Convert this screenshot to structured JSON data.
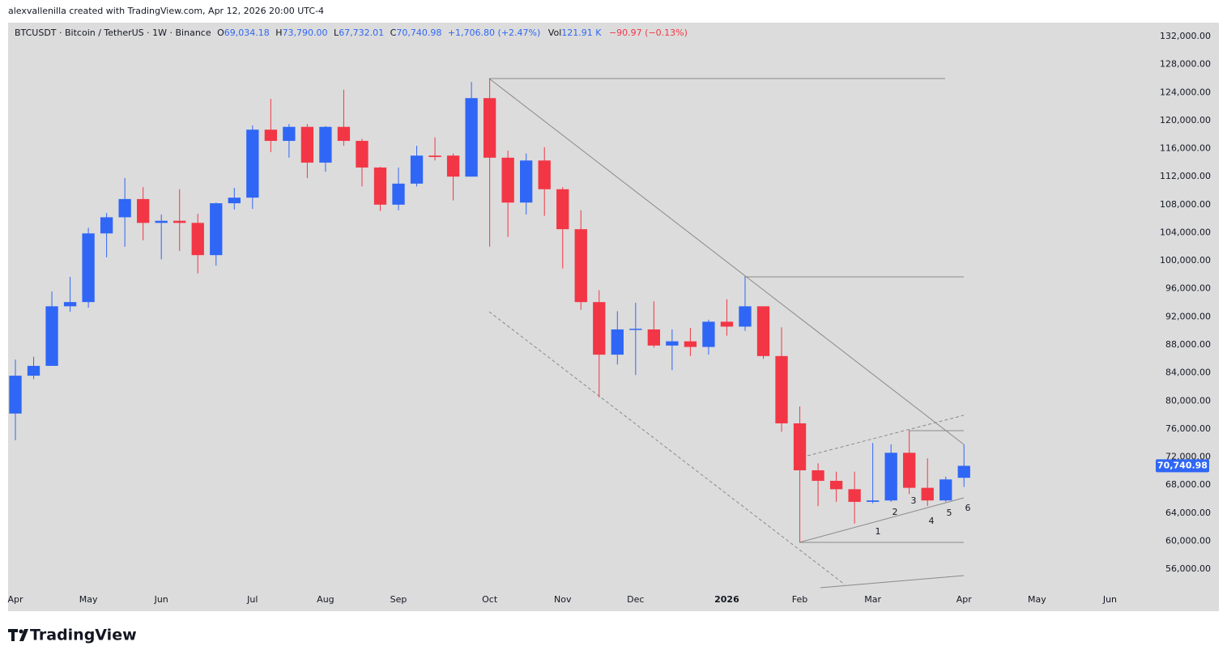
{
  "watermark": "alexvallenilla created with TradingView.com, Apr 12, 2026 20:00 UTC-4",
  "brand": "TradingView",
  "header": {
    "symbol": "BTCUSDT · Bitcoin / TetherUS · 1W · Binance",
    "ohlc": [
      {
        "key": "O",
        "value": "69,034.18"
      },
      {
        "key": "H",
        "value": "73,790.00"
      },
      {
        "key": "L",
        "value": "67,732.01"
      },
      {
        "key": "C",
        "value": "70,740.98"
      }
    ],
    "change": "+1,706.80 (+2.47%)",
    "volume_key": "Vol",
    "volume": "121.91 K",
    "volume_change": "−90.97 (−0.13%)"
  },
  "annotations": [
    "1",
    "2",
    "3",
    "4",
    "5",
    "6"
  ],
  "chart_data": {
    "type": "candlestick",
    "up_color": "#2f66f5",
    "down_color": "#f23645",
    "open": [
      78200,
      83600,
      85000,
      93500,
      94100,
      103900,
      106200,
      108800,
      105400,
      105700,
      105400,
      100800,
      108200,
      109000,
      118700,
      117100,
      119100,
      114000,
      119100,
      117100,
      113300,
      108000,
      111000,
      115000,
      115000,
      112000,
      123200,
      114700,
      108300,
      114300,
      110200,
      104500,
      94100,
      86600,
      90200,
      90200,
      87900,
      88500,
      87700,
      91300,
      90600,
      93500,
      86400,
      76800,
      70100,
      68600,
      67400,
      65600,
      65800,
      72600,
      67600,
      65800,
      69034.18
    ],
    "high": [
      85900,
      86300,
      95600,
      97700,
      104700,
      106800,
      111800,
      110500,
      106600,
      110200,
      106700,
      108300,
      110400,
      119300,
      123100,
      119500,
      119500,
      119200,
      124400,
      117400,
      113400,
      113300,
      116400,
      117600,
      115300,
      125500,
      126000,
      115700,
      115300,
      116200,
      110500,
      107200,
      95800,
      92800,
      94000,
      94200,
      90200,
      90400,
      91600,
      94500,
      97700,
      93500,
      90500,
      79200,
      71100,
      69900,
      69900,
      74000,
      73800,
      75800,
      71800,
      69200,
      73790
    ],
    "low": [
      74400,
      83100,
      85000,
      92700,
      93300,
      100500,
      102000,
      102900,
      100200,
      101400,
      98200,
      99300,
      107300,
      107400,
      115500,
      114700,
      111800,
      112700,
      116400,
      110600,
      107100,
      107200,
      110600,
      114300,
      108600,
      112000,
      102000,
      103400,
      106600,
      106400,
      98900,
      93000,
      80500,
      85200,
      83700,
      87600,
      84400,
      86400,
      86600,
      89300,
      90000,
      86000,
      75600,
      59800,
      65000,
      65600,
      62500,
      65400,
      65600,
      66700,
      65000,
      65600,
      67732.01
    ],
    "close": [
      83600,
      85000,
      93500,
      94100,
      103900,
      106200,
      108800,
      105400,
      105700,
      105400,
      100800,
      108200,
      109000,
      118700,
      117100,
      119100,
      114000,
      119100,
      117100,
      113300,
      108000,
      111000,
      115000,
      114800,
      112000,
      123200,
      114700,
      108300,
      114300,
      110200,
      104500,
      94100,
      86600,
      90200,
      90300,
      87900,
      88500,
      87700,
      91300,
      90600,
      93500,
      86400,
      76800,
      70100,
      68600,
      67400,
      65600,
      65800,
      72600,
      67600,
      65800,
      68800,
      70740.98
    ],
    "last_price_label": "70,740.98",
    "xlim": [
      -0.4,
      62.2
    ],
    "xticks": [
      {
        "value": 0,
        "label": "Apr"
      },
      {
        "value": 4,
        "label": "May"
      },
      {
        "value": 8,
        "label": "Jun"
      },
      {
        "value": 13,
        "label": "Jul"
      },
      {
        "value": 17,
        "label": "Aug"
      },
      {
        "value": 21,
        "label": "Sep"
      },
      {
        "value": 26,
        "label": "Oct"
      },
      {
        "value": 30,
        "label": "Nov"
      },
      {
        "value": 34,
        "label": "Dec"
      },
      {
        "value": 39,
        "label": "2026"
      },
      {
        "value": 43,
        "label": "Feb"
      },
      {
        "value": 47,
        "label": "Mar"
      },
      {
        "value": 52,
        "label": "Apr"
      },
      {
        "value": 56,
        "label": "May"
      },
      {
        "value": 60,
        "label": "Jun"
      }
    ],
    "ylim": [
      50000,
      134000
    ],
    "yticks": [
      {
        "value": 56000,
        "label": "56,000.00"
      },
      {
        "value": 60000,
        "label": "60,000.00"
      },
      {
        "value": 64000,
        "label": "64,000.00"
      },
      {
        "value": 68000,
        "label": "68,000.00"
      },
      {
        "value": 72000,
        "label": "72,000.00"
      },
      {
        "value": 76000,
        "label": "76,000.00"
      },
      {
        "value": 80000,
        "label": "80,000.00"
      },
      {
        "value": 84000,
        "label": "84,000.00"
      },
      {
        "value": 88000,
        "label": "88,000.00"
      },
      {
        "value": 92000,
        "label": "92,000.00"
      },
      {
        "value": 96000,
        "label": "96,000.00"
      },
      {
        "value": 100000,
        "label": "100,000.00"
      },
      {
        "value": 104000,
        "label": "104,000.00"
      },
      {
        "value": 108000,
        "label": "108,000.00"
      },
      {
        "value": 112000,
        "label": "112,000.00"
      },
      {
        "value": 116000,
        "label": "116,000.00"
      },
      {
        "value": 120000,
        "label": "120,000.00"
      },
      {
        "value": 124000,
        "label": "124,000.00"
      },
      {
        "value": 128000,
        "label": "128,000.00"
      },
      {
        "value": 132000,
        "label": "132,000.00"
      }
    ]
  }
}
